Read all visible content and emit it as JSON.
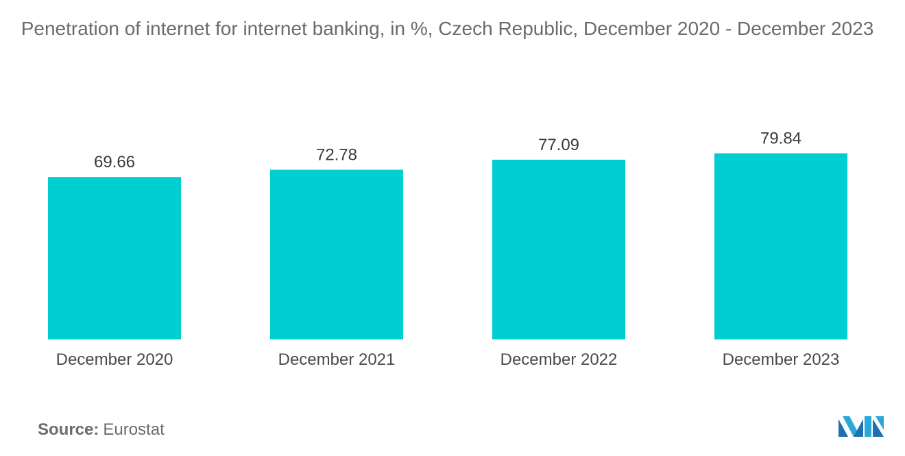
{
  "title": "Penetration of internet for internet banking, in %, Czech Republic, December 2020 - December 2023",
  "source": {
    "label": "Source:",
    "value": "Eurostat"
  },
  "bar_color": "#00CED1",
  "chart_data": {
    "type": "bar",
    "title": "Penetration of internet for internet banking, in %, Czech Republic, December 2020 - December 2023",
    "categories": [
      "December 2020",
      "December 2021",
      "December 2022",
      "December 2023"
    ],
    "values": [
      69.66,
      72.78,
      77.09,
      79.84
    ],
    "value_labels": [
      "69.66",
      "72.78",
      "77.09",
      "79.84"
    ],
    "grid": false,
    "y_axis_visible": false
  }
}
